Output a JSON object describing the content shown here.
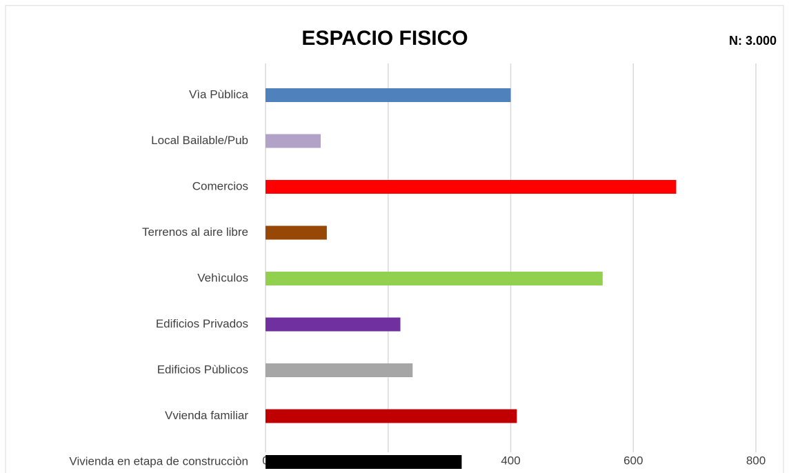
{
  "chart_data": {
    "type": "barh",
    "title": "ESPACIO FISICO",
    "annotation": "N: 3.000",
    "categories": [
      "Vìa Pùblica",
      "Local Bailable/Pub",
      "Comercios",
      "Terrenos al aire libre",
      "Vehìculos",
      "Edificios Privados",
      "Edificios Pùblicos",
      "Vvienda familiar",
      "Vivienda en etapa de construcciòn"
    ],
    "values": [
      400,
      90,
      670,
      100,
      550,
      220,
      240,
      410,
      320
    ],
    "colors": [
      "#4f81bd",
      "#b3a2c7",
      "#ff0000",
      "#974706",
      "#92d050",
      "#7030a0",
      "#a6a6a6",
      "#c00000",
      "#000000"
    ],
    "xlim": [
      0,
      800
    ],
    "xticks": [
      0,
      200,
      400,
      600,
      800
    ],
    "grid": true
  }
}
